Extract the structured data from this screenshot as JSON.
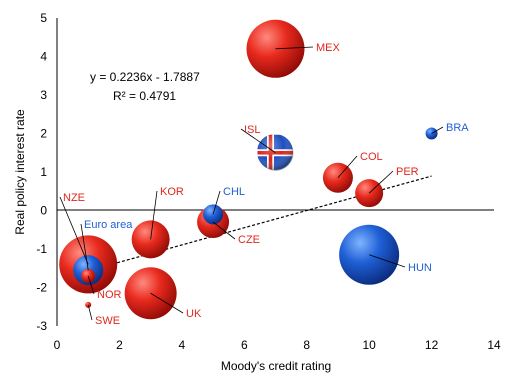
{
  "chart_data": {
    "type": "scatter",
    "xlabel": "Moody's credit rating",
    "ylabel": "Real policy interest rate",
    "xlim": [
      0,
      14
    ],
    "ylim": [
      -3,
      5
    ],
    "xticks": [
      "0",
      "2",
      "4",
      "6",
      "8",
      "10",
      "12",
      "14"
    ],
    "yticks": [
      "-3",
      "-2",
      "-1",
      "0",
      "1",
      "2",
      "3",
      "4",
      "5"
    ],
    "annotations": [
      "y = 0.2236x - 1.7887",
      "R² = 0.4791"
    ],
    "trendline": {
      "slope": 0.2236,
      "intercept": -1.7887,
      "x_range": [
        1,
        12
      ],
      "style": "dotted"
    },
    "colors": {
      "red": "#e0281e",
      "blue": "#1f5fd6",
      "iceland": "flag"
    },
    "points": [
      {
        "label": "MEX",
        "x": 7,
        "y": 4.2,
        "size": "large",
        "color": "red"
      },
      {
        "label": "BRA",
        "x": 12,
        "y": 2.0,
        "size": "small",
        "color": "blue"
      },
      {
        "label": "ISL",
        "x": 7,
        "y": 1.5,
        "size": "medium",
        "color": "iceland"
      },
      {
        "label": "COL",
        "x": 9,
        "y": 0.85,
        "size": "small-medium",
        "color": "red"
      },
      {
        "label": "PER",
        "x": 10,
        "y": 0.45,
        "size": "small-medium",
        "color": "red"
      },
      {
        "label": "CHL",
        "x": 5,
        "y": -0.1,
        "size": "small",
        "color": "blue"
      },
      {
        "label": "CZE",
        "x": 5,
        "y": -0.3,
        "size": "small-medium",
        "color": "red"
      },
      {
        "label": "KOR",
        "x": 3,
        "y": -0.75,
        "size": "medium",
        "color": "red"
      },
      {
        "label": "HUN",
        "x": 10,
        "y": -1.15,
        "size": "large",
        "color": "blue"
      },
      {
        "label": "NZE",
        "x": 1,
        "y": -1.4,
        "size": "large",
        "color": "red"
      },
      {
        "label": "Euro area",
        "x": 1,
        "y": -1.55,
        "size": "small-medium",
        "color": "blue"
      },
      {
        "label": "NOR",
        "x": 1,
        "y": -1.7,
        "size": "small",
        "color": "red"
      },
      {
        "label": "UK",
        "x": 3,
        "y": -2.15,
        "size": "large",
        "color": "red"
      },
      {
        "label": "SWE",
        "x": 1,
        "y": -2.45,
        "size": "tiny",
        "color": "red"
      }
    ]
  }
}
